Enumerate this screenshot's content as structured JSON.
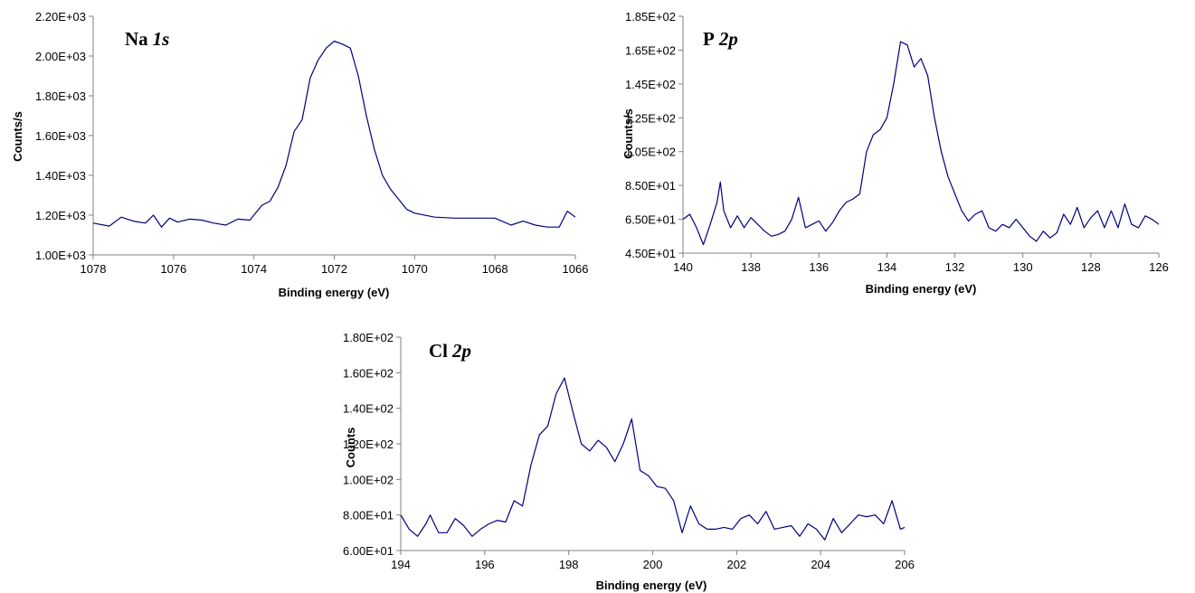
{
  "chart_data": [
    {
      "type": "line",
      "title": "Na",
      "title_italic": "1s",
      "xlabel": "Binding energy (eV)",
      "ylabel": "Counts/s",
      "xlim": [
        1078,
        1066
      ],
      "ylim": [
        1000,
        2200
      ],
      "xticks": [
        1078,
        1076,
        1074,
        1072,
        1070,
        1068,
        1066
      ],
      "xtick_labels": [
        "1078",
        "1076",
        "1074",
        "1072",
        "1070",
        "1068",
        "1066"
      ],
      "yticks": [
        1000,
        1200,
        1400,
        1600,
        1800,
        2000,
        2200
      ],
      "ytick_labels": [
        "1.00E+03",
        "1.20E+03",
        "1.40E+03",
        "1.60E+03",
        "1.80E+03",
        "2.00E+03",
        "2.20E+03"
      ],
      "grid": false,
      "line_color": "#000080",
      "x": [
        1078.0,
        1077.6,
        1077.3,
        1077.0,
        1076.7,
        1076.5,
        1076.3,
        1076.1,
        1075.9,
        1075.6,
        1075.3,
        1075.0,
        1074.7,
        1074.4,
        1074.1,
        1073.8,
        1073.6,
        1073.4,
        1073.2,
        1073.0,
        1072.8,
        1072.6,
        1072.4,
        1072.2,
        1072.0,
        1071.8,
        1071.6,
        1071.4,
        1071.2,
        1071.0,
        1070.8,
        1070.6,
        1070.4,
        1070.2,
        1070.0,
        1069.5,
        1069.0,
        1068.5,
        1068.0,
        1067.6,
        1067.3,
        1067.0,
        1066.7,
        1066.4,
        1066.2,
        1066.0
      ],
      "y": [
        1160,
        1145,
        1190,
        1170,
        1160,
        1200,
        1140,
        1185,
        1165,
        1180,
        1175,
        1160,
        1150,
        1180,
        1175,
        1250,
        1270,
        1340,
        1450,
        1620,
        1680,
        1890,
        1980,
        2040,
        2075,
        2060,
        2040,
        1900,
        1700,
        1530,
        1400,
        1330,
        1280,
        1230,
        1210,
        1190,
        1185,
        1185,
        1185,
        1150,
        1170,
        1150,
        1140,
        1140,
        1220,
        1190
      ]
    },
    {
      "type": "line",
      "title": "P",
      "title_italic": "2p",
      "xlabel": "Binding energy (eV)",
      "ylabel": "Counts/s",
      "xlim": [
        140,
        126
      ],
      "ylim": [
        45,
        185
      ],
      "xticks": [
        140,
        138,
        136,
        134,
        132,
        130,
        128,
        126
      ],
      "xtick_labels": [
        "140",
        "138",
        "136",
        "134",
        "132",
        "130",
        "128",
        "126"
      ],
      "yticks": [
        45,
        65,
        85,
        105,
        125,
        145,
        165,
        185
      ],
      "ytick_labels": [
        "4.50E+01",
        "6.50E+01",
        "8.50E+01",
        "1.05E+02",
        "1.25E+02",
        "1.45E+02",
        "1.65E+02",
        "1.85E+02"
      ],
      "grid": false,
      "line_color": "#000080",
      "x": [
        140.0,
        139.8,
        139.6,
        139.4,
        139.2,
        139.0,
        138.9,
        138.8,
        138.6,
        138.4,
        138.2,
        138.0,
        137.8,
        137.6,
        137.4,
        137.2,
        137.0,
        136.8,
        136.6,
        136.4,
        136.2,
        136.0,
        135.8,
        135.6,
        135.4,
        135.2,
        135.0,
        134.8,
        134.6,
        134.4,
        134.2,
        134.0,
        133.8,
        133.6,
        133.4,
        133.2,
        133.0,
        132.8,
        132.6,
        132.4,
        132.2,
        132.0,
        131.8,
        131.6,
        131.4,
        131.2,
        131.0,
        130.8,
        130.6,
        130.4,
        130.2,
        130.0,
        129.8,
        129.6,
        129.4,
        129.2,
        129.0,
        128.8,
        128.6,
        128.4,
        128.2,
        128.0,
        127.8,
        127.6,
        127.4,
        127.2,
        127.0,
        126.8,
        126.6,
        126.4,
        126.2,
        126.0
      ],
      "y": [
        65,
        68,
        60,
        50,
        62,
        75,
        87,
        70,
        60,
        67,
        60,
        66,
        62,
        58,
        55,
        56,
        58,
        65,
        78,
        60,
        62,
        64,
        58,
        63,
        70,
        75,
        77,
        80,
        105,
        115,
        118,
        125,
        145,
        170,
        168,
        155,
        160,
        150,
        125,
        105,
        90,
        80,
        70,
        64,
        68,
        70,
        60,
        58,
        62,
        60,
        65,
        60,
        55,
        52,
        58,
        54,
        57,
        68,
        62,
        72,
        60,
        66,
        70,
        60,
        70,
        60,
        74,
        62,
        60,
        67,
        65,
        62
      ]
    },
    {
      "type": "line",
      "title": "Cl",
      "title_italic": "2p",
      "xlabel": "Binding energy (eV)",
      "ylabel": "Counts",
      "xlim": [
        194,
        206
      ],
      "ylim": [
        60,
        180
      ],
      "xticks": [
        194,
        196,
        198,
        200,
        202,
        204,
        206
      ],
      "xtick_labels": [
        "194",
        "196",
        "198",
        "200",
        "202",
        "204",
        "206"
      ],
      "yticks": [
        60,
        80,
        100,
        120,
        140,
        160,
        180
      ],
      "ytick_labels": [
        "6.00E+01",
        "8.00E+01",
        "1.00E+02",
        "1.20E+02",
        "1.40E+02",
        "1.60E+02",
        "1.80E+02"
      ],
      "grid": false,
      "line_color": "#000080",
      "x": [
        194.0,
        194.2,
        194.4,
        194.6,
        194.7,
        194.9,
        195.1,
        195.3,
        195.5,
        195.7,
        195.9,
        196.1,
        196.3,
        196.5,
        196.7,
        196.9,
        197.1,
        197.3,
        197.5,
        197.7,
        197.9,
        198.1,
        198.3,
        198.5,
        198.7,
        198.9,
        199.1,
        199.3,
        199.5,
        199.7,
        199.9,
        200.1,
        200.3,
        200.5,
        200.7,
        200.9,
        201.1,
        201.3,
        201.5,
        201.7,
        201.9,
        202.1,
        202.3,
        202.5,
        202.7,
        202.9,
        203.1,
        203.3,
        203.5,
        203.7,
        203.9,
        204.1,
        204.3,
        204.5,
        204.7,
        204.9,
        205.1,
        205.3,
        205.5,
        205.7,
        205.9,
        206.0
      ],
      "y": [
        80,
        72,
        68,
        75,
        80,
        70,
        70,
        78,
        74,
        68,
        72,
        75,
        77,
        76,
        88,
        85,
        108,
        125,
        130,
        148,
        157,
        138,
        120,
        116,
        122,
        118,
        110,
        120,
        134,
        105,
        102,
        96,
        95,
        88,
        70,
        85,
        75,
        72,
        72,
        73,
        72,
        78,
        80,
        75,
        82,
        72,
        73,
        74,
        68,
        75,
        72,
        66,
        78,
        70,
        75,
        80,
        79,
        80,
        75,
        88,
        72,
        73
      ]
    }
  ]
}
